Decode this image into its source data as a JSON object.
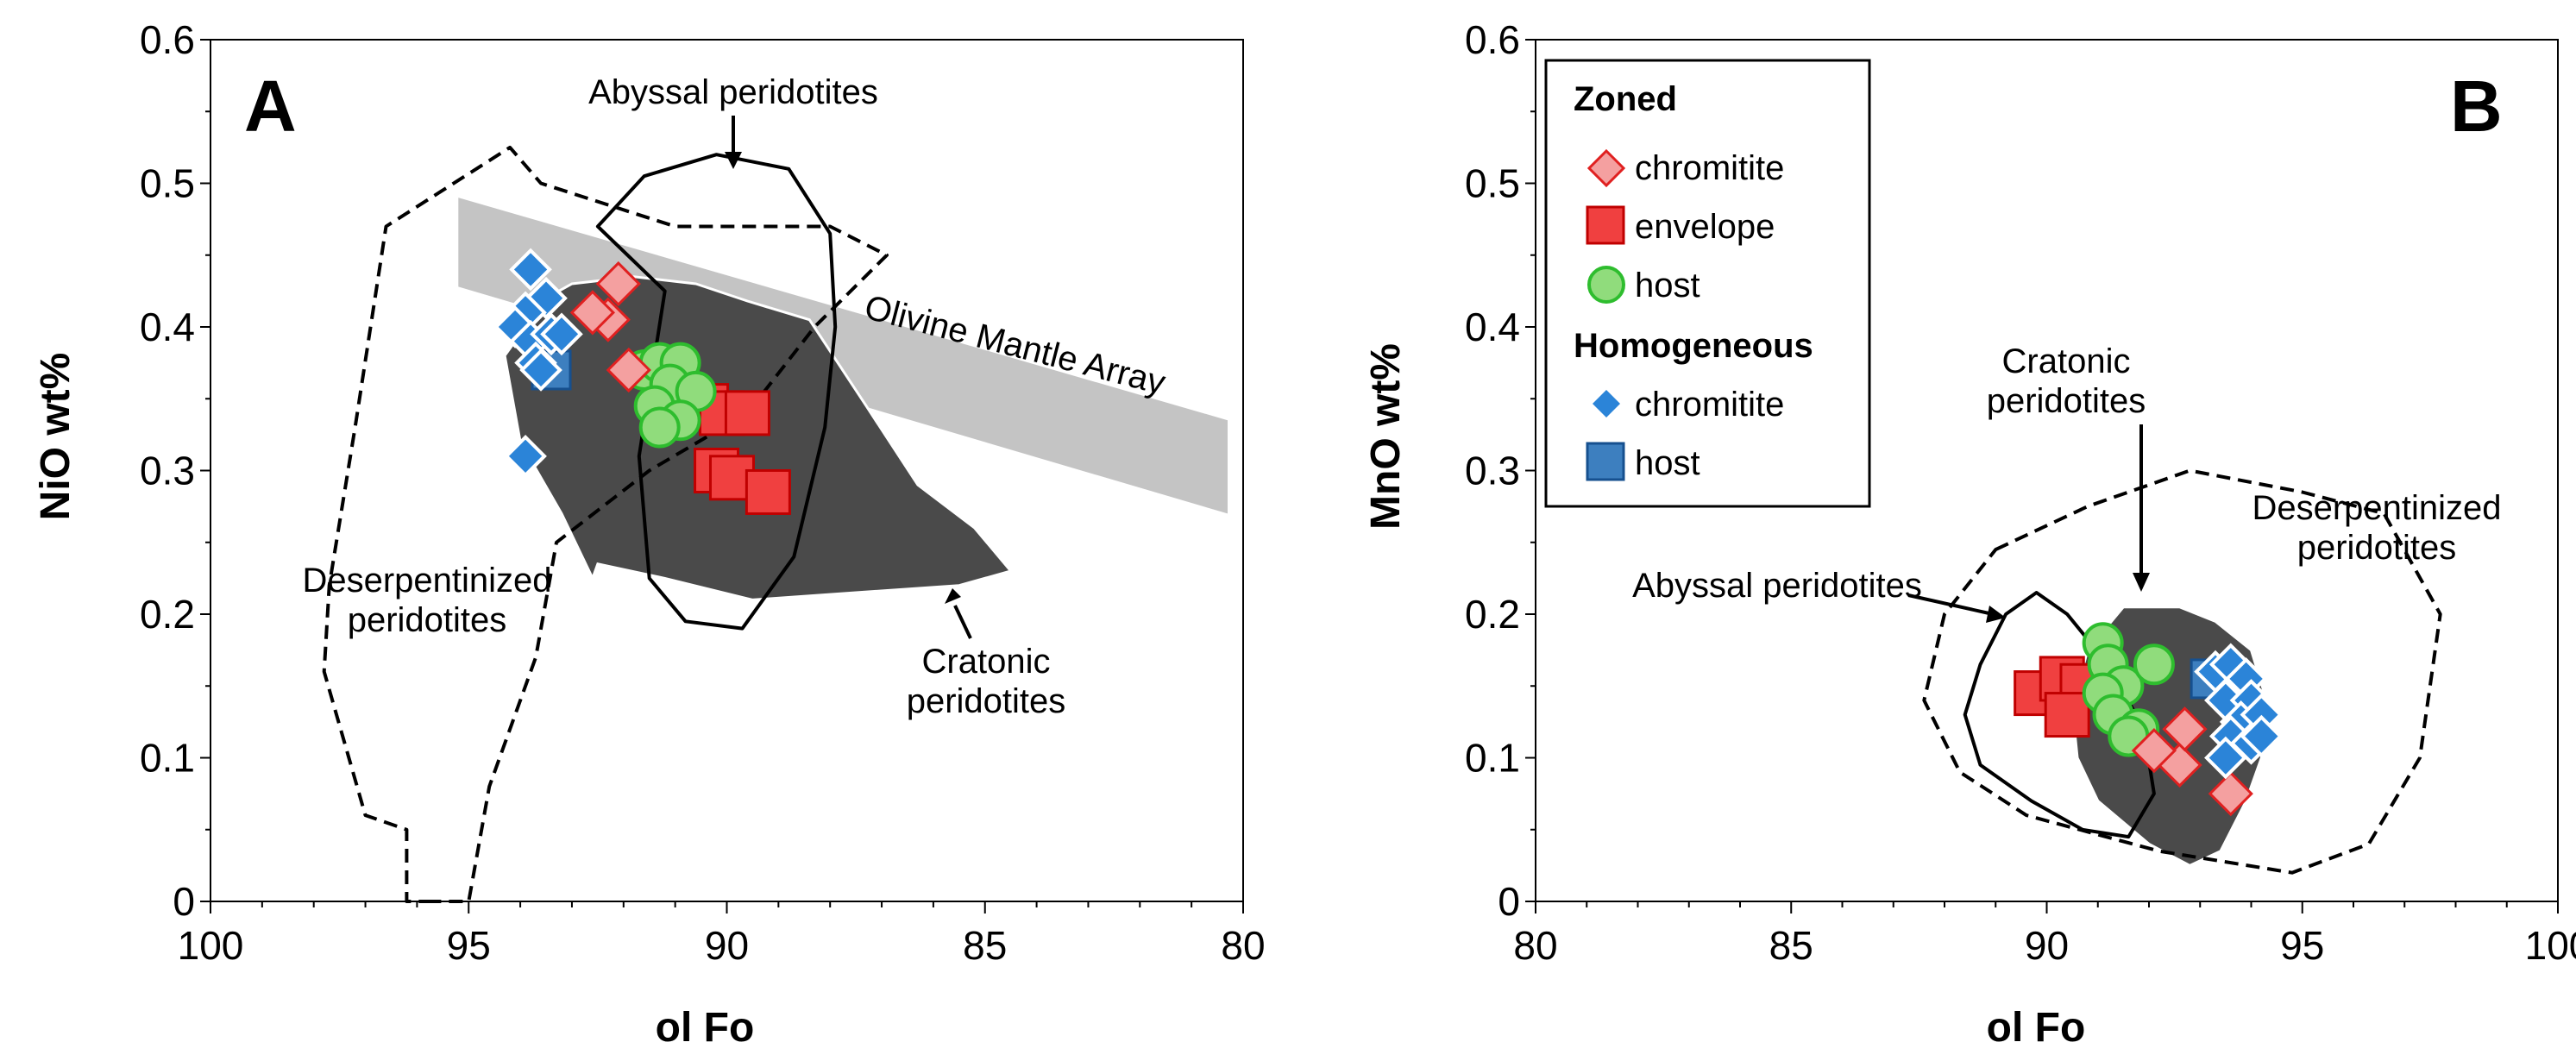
{
  "colors": {
    "chromitite_zoned_fill": "#f4a0a0",
    "chromitite_zoned_stroke": "#e02020",
    "envelope_fill": "#f04040",
    "envelope_stroke": "#c00000",
    "host_zoned_fill": "#90dc7c",
    "host_zoned_stroke": "#2ebd2e",
    "chromitite_homog_fill": "#2b84d8",
    "chromitite_homog_stroke": "#ffffff",
    "host_homog_fill": "#3d7fbf",
    "host_homog_stroke": "#16508f",
    "cratonic_field": "#4a4a4a",
    "mantle_array": "#c4c4c4"
  },
  "chart_data": [
    {
      "panel": "A",
      "type": "scatter",
      "xlabel": "ol Fo",
      "ylabel": "NiO wt%",
      "xlim": [
        100,
        80
      ],
      "ylim": [
        0,
        0.6
      ],
      "xticks": [
        "100",
        "95",
        "90",
        "85",
        "80"
      ],
      "yticks": [
        "0",
        "0.1",
        "0.2",
        "0.3",
        "0.4",
        "0.5",
        "0.6"
      ],
      "annotations": {
        "abyssal": "Abyssal peridotites",
        "olivine_array": "Olivine Mantle Array",
        "deserp_line1": "Deserpentinized",
        "deserp_line2": "peridotites",
        "cratonic_line1": "Cratonic",
        "cratonic_line2": "peridotites"
      },
      "fields": {
        "cratonic": [
          [
            93.5,
            0.42
          ],
          [
            93.0,
            0.43
          ],
          [
            91.8,
            0.435
          ],
          [
            90.6,
            0.43
          ],
          [
            89.6,
            0.418
          ],
          [
            88.4,
            0.405
          ],
          [
            87.3,
            0.345
          ],
          [
            86.3,
            0.29
          ],
          [
            85.2,
            0.26
          ],
          [
            84.5,
            0.23
          ],
          [
            85.5,
            0.22
          ],
          [
            87.5,
            0.215
          ],
          [
            89.5,
            0.21
          ],
          [
            91.2,
            0.225
          ],
          [
            92.5,
            0.235
          ],
          [
            92.6,
            0.225
          ],
          [
            93.2,
            0.27
          ],
          [
            94.0,
            0.32
          ],
          [
            94.3,
            0.38
          ]
        ],
        "mantle_array": [
          [
            95.2,
            0.49
          ],
          [
            80.3,
            0.335
          ],
          [
            80.3,
            0.27
          ],
          [
            95.2,
            0.428
          ]
        ],
        "abyssal": [
          [
            91.2,
            0.425
          ],
          [
            92.5,
            0.47
          ],
          [
            91.6,
            0.505
          ],
          [
            90.2,
            0.52
          ],
          [
            88.8,
            0.51
          ],
          [
            88.0,
            0.465
          ],
          [
            87.9,
            0.4
          ],
          [
            88.1,
            0.33
          ],
          [
            88.7,
            0.24
          ],
          [
            89.7,
            0.19
          ],
          [
            90.8,
            0.195
          ],
          [
            91.5,
            0.225
          ],
          [
            91.7,
            0.31
          ]
        ],
        "deserpentinized": [
          [
            95.8,
            0.0
          ],
          [
            95.0,
            0.0
          ],
          [
            94.6,
            0.08
          ],
          [
            93.7,
            0.17
          ],
          [
            93.3,
            0.25
          ],
          [
            91.5,
            0.3
          ],
          [
            89.6,
            0.34
          ],
          [
            88.3,
            0.4
          ],
          [
            86.9,
            0.45
          ],
          [
            88.0,
            0.47
          ],
          [
            91.0,
            0.47
          ],
          [
            93.6,
            0.5
          ],
          [
            94.2,
            0.525
          ],
          [
            96.6,
            0.47
          ],
          [
            97.2,
            0.33
          ],
          [
            97.7,
            0.22
          ],
          [
            97.8,
            0.16
          ],
          [
            97.0,
            0.06
          ],
          [
            96.2,
            0.05
          ],
          [
            96.2,
            0.0
          ]
        ]
      },
      "series": [
        {
          "name": "Zoned chromitite",
          "marker": "diamond",
          "points": [
            [
              92.1,
              0.43
            ],
            [
              92.3,
              0.405
            ],
            [
              92.6,
              0.41
            ],
            [
              91.9,
              0.37
            ]
          ]
        },
        {
          "name": "Zoned envelope",
          "marker": "square",
          "points": [
            [
              90.4,
              0.345
            ],
            [
              90.1,
              0.34
            ],
            [
              89.6,
              0.34
            ],
            [
              90.2,
              0.3
            ],
            [
              89.9,
              0.295
            ],
            [
              89.2,
              0.285
            ]
          ]
        },
        {
          "name": "Zoned host",
          "marker": "circle",
          "points": [
            [
              91.6,
              0.37
            ],
            [
              91.3,
              0.375
            ],
            [
              90.9,
              0.375
            ],
            [
              91.1,
              0.36
            ],
            [
              90.6,
              0.355
            ],
            [
              91.4,
              0.345
            ],
            [
              90.9,
              0.335
            ],
            [
              91.3,
              0.33
            ]
          ]
        },
        {
          "name": "Homogeneous chromitite",
          "marker": "small-diamond",
          "points": [
            [
              93.8,
              0.44
            ],
            [
              93.5,
              0.42
            ],
            [
              93.9,
              0.41
            ],
            [
              94.1,
              0.4
            ],
            [
              93.8,
              0.39
            ],
            [
              93.4,
              0.395
            ],
            [
              93.2,
              0.395
            ],
            [
              93.7,
              0.375
            ],
            [
              93.6,
              0.37
            ],
            [
              93.9,
              0.31
            ]
          ]
        },
        {
          "name": "Homogeneous host",
          "marker": "square",
          "points": [
            [
              93.4,
              0.37
            ]
          ]
        }
      ]
    },
    {
      "panel": "B",
      "type": "scatter",
      "xlabel": "ol Fo",
      "ylabel": "MnO wt%",
      "xlim": [
        80,
        100
      ],
      "ylim": [
        0,
        0.6
      ],
      "xticks": [
        "80",
        "85",
        "90",
        "95",
        "100"
      ],
      "yticks": [
        "0",
        "0.1",
        "0.2",
        "0.3",
        "0.4",
        "0.5",
        "0.6"
      ],
      "annotations": {
        "abyssal": "Abyssal peridotites",
        "cratonic_line1": "Cratonic",
        "cratonic_line2": "peridotites",
        "deserp_line1": "Deserpentinized",
        "deserp_line2": "peridotites"
      },
      "legend": {
        "zoned_title": "Zoned",
        "homog_title": "Homogeneous",
        "items": [
          "chromitite",
          "envelope",
          "host",
          "chromitite",
          "host"
        ]
      },
      "fields": {
        "cratonic": [
          [
            91.5,
            0.205
          ],
          [
            92.6,
            0.205
          ],
          [
            93.3,
            0.195
          ],
          [
            94.0,
            0.175
          ],
          [
            94.3,
            0.14
          ],
          [
            94.2,
            0.1
          ],
          [
            93.9,
            0.07
          ],
          [
            93.4,
            0.035
          ],
          [
            92.8,
            0.025
          ],
          [
            92.0,
            0.04
          ],
          [
            91.0,
            0.07
          ],
          [
            90.6,
            0.1
          ],
          [
            90.5,
            0.135
          ],
          [
            90.8,
            0.175
          ]
        ],
        "abyssal": [
          [
            89.8,
            0.215
          ],
          [
            90.4,
            0.2
          ],
          [
            91.2,
            0.165
          ],
          [
            91.9,
            0.12
          ],
          [
            92.1,
            0.075
          ],
          [
            91.6,
            0.045
          ],
          [
            90.7,
            0.05
          ],
          [
            89.7,
            0.07
          ],
          [
            88.7,
            0.095
          ],
          [
            88.4,
            0.13
          ],
          [
            88.7,
            0.165
          ],
          [
            89.2,
            0.2
          ]
        ],
        "deserpentinized": [
          [
            89.0,
            0.245
          ],
          [
            90.8,
            0.275
          ],
          [
            92.8,
            0.3
          ],
          [
            95.0,
            0.285
          ],
          [
            96.6,
            0.27
          ],
          [
            97.7,
            0.2
          ],
          [
            97.3,
            0.1
          ],
          [
            96.3,
            0.04
          ],
          [
            94.8,
            0.02
          ],
          [
            92.2,
            0.035
          ],
          [
            89.6,
            0.06
          ],
          [
            88.3,
            0.09
          ],
          [
            87.6,
            0.14
          ],
          [
            88.0,
            0.2
          ]
        ]
      },
      "series": [
        {
          "name": "Zoned chromitite",
          "marker": "diamond",
          "points": [
            [
              93.6,
              0.075
            ],
            [
              92.6,
              0.095
            ],
            [
              92.7,
              0.12
            ],
            [
              92.1,
              0.105
            ]
          ]
        },
        {
          "name": "Zoned envelope",
          "marker": "square",
          "points": [
            [
              89.8,
              0.145
            ],
            [
              90.3,
              0.155
            ],
            [
              90.7,
              0.15
            ],
            [
              90.4,
              0.13
            ]
          ]
        },
        {
          "name": "Zoned host",
          "marker": "circle",
          "points": [
            [
              91.1,
              0.18
            ],
            [
              91.2,
              0.165
            ],
            [
              91.5,
              0.15
            ],
            [
              91.1,
              0.145
            ],
            [
              92.1,
              0.165
            ],
            [
              91.3,
              0.13
            ],
            [
              91.8,
              0.12
            ],
            [
              91.6,
              0.115
            ]
          ]
        },
        {
          "name": "Homogeneous chromitite",
          "marker": "small-diamond",
          "points": [
            [
              93.3,
              0.16
            ],
            [
              93.6,
              0.165
            ],
            [
              93.9,
              0.155
            ],
            [
              93.5,
              0.14
            ],
            [
              94.0,
              0.14
            ],
            [
              93.8,
              0.125
            ],
            [
              94.2,
              0.13
            ],
            [
              93.6,
              0.115
            ],
            [
              94.0,
              0.11
            ],
            [
              93.5,
              0.1
            ],
            [
              94.2,
              0.115
            ]
          ]
        },
        {
          "name": "Homogeneous host",
          "marker": "square",
          "points": [
            [
              93.2,
              0.155
            ]
          ]
        }
      ]
    }
  ]
}
